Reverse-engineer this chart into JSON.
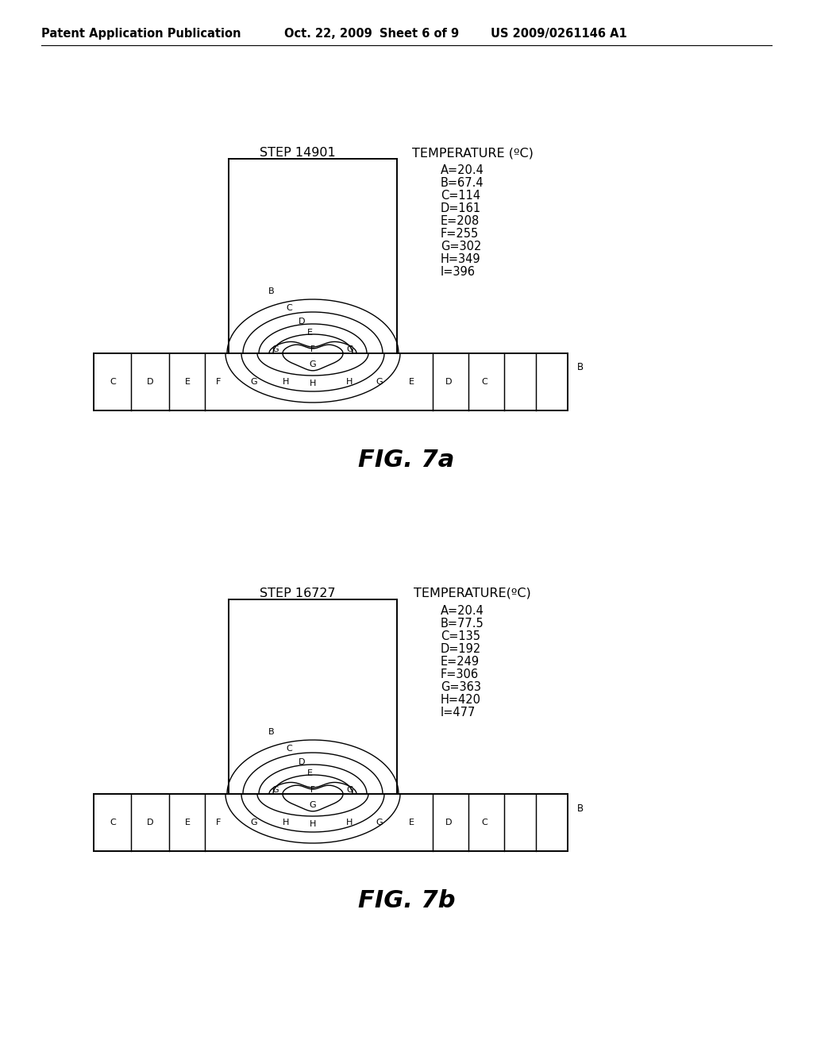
{
  "bg_color": "#ffffff",
  "header_text": "Patent Application Publication",
  "header_date": "Oct. 22, 2009",
  "header_sheet": "Sheet 6 of 9",
  "header_patent": "US 2009/0261146 A1",
  "fig7a": {
    "step_label": "STEP 14901",
    "temp_label": "TEMPERATURE (ºC)",
    "legend": [
      "A=20.4",
      "B=67.4",
      "C=114",
      "D=161",
      "E=208",
      "F=255",
      "G=302",
      "H=349",
      "I=396"
    ],
    "fig_label": "FIG. 7a"
  },
  "fig7b": {
    "step_label": "STEP 16727",
    "temp_label": "TEMPERATURE(ºC)",
    "legend": [
      "A=20.4",
      "B=77.5",
      "C=135",
      "D=192",
      "E=249",
      "F=306",
      "G=363",
      "H=420",
      "I=477"
    ],
    "fig_label": "FIG. 7b"
  }
}
